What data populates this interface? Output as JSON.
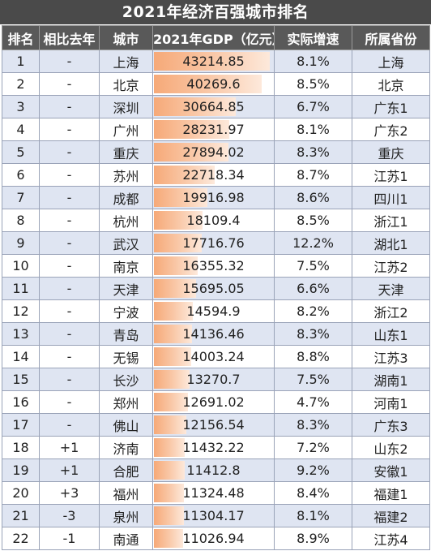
{
  "title": "2021年经济百强城市排名",
  "headers": [
    "排名",
    "相比去年",
    "城市",
    "2021年GDP（亿元）",
    "实际增速",
    "所属省份"
  ],
  "gdp_max": 43214.85,
  "colors": {
    "header_bg": "#595959",
    "title_bg": "#4a4a4a",
    "row_odd": "#dfe5f2",
    "growth_red": "#c0262f",
    "growth_green": "#2d9a4b",
    "bar": "#f6a978"
  },
  "rows": [
    {
      "rank": "1",
      "change": "-",
      "change_color": "dark",
      "city": "上海",
      "gdp": "43214.85",
      "growth": "8.1%",
      "growth_color": "dark",
      "province": "上海"
    },
    {
      "rank": "2",
      "change": "-",
      "change_color": "dark",
      "city": "北京",
      "gdp": "40269.6",
      "growth": "8.5%",
      "growth_color": "red",
      "province": "北京"
    },
    {
      "rank": "3",
      "change": "-",
      "change_color": "dark",
      "city": "深圳",
      "gdp": "30664.85",
      "growth": "6.7%",
      "growth_color": "green",
      "province": "广东1"
    },
    {
      "rank": "4",
      "change": "-",
      "change_color": "dark",
      "city": "广州",
      "gdp": "28231.97",
      "growth": "8.1%",
      "growth_color": "dark",
      "province": "广东2"
    },
    {
      "rank": "5",
      "change": "-",
      "change_color": "dark",
      "city": "重庆",
      "gdp": "27894.02",
      "growth": "8.3%",
      "growth_color": "red",
      "province": "重庆"
    },
    {
      "rank": "6",
      "change": "-",
      "change_color": "dark",
      "city": "苏州",
      "gdp": "22718.34",
      "growth": "8.7%",
      "growth_color": "red",
      "province": "江苏1"
    },
    {
      "rank": "7",
      "change": "-",
      "change_color": "dark",
      "city": "成都",
      "gdp": "19916.98",
      "growth": "8.6%",
      "growth_color": "red",
      "province": "四川1"
    },
    {
      "rank": "8",
      "change": "-",
      "change_color": "dark",
      "city": "杭州",
      "gdp": "18109.4",
      "growth": "8.5%",
      "growth_color": "red",
      "province": "浙江1"
    },
    {
      "rank": "9",
      "change": "-",
      "change_color": "dark",
      "city": "武汉",
      "gdp": "17716.76",
      "growth": "12.2%",
      "growth_color": "red",
      "province": "湖北1"
    },
    {
      "rank": "10",
      "change": "-",
      "change_color": "dark",
      "city": "南京",
      "gdp": "16355.32",
      "growth": "7.5%",
      "growth_color": "green",
      "province": "江苏2"
    },
    {
      "rank": "11",
      "change": "-",
      "change_color": "dark",
      "city": "天津",
      "gdp": "15695.05",
      "growth": "6.6%",
      "growth_color": "green",
      "province": "天津"
    },
    {
      "rank": "12",
      "change": "-",
      "change_color": "dark",
      "city": "宁波",
      "gdp": "14594.9",
      "growth": "8.2%",
      "growth_color": "red",
      "province": "浙江2"
    },
    {
      "rank": "13",
      "change": "-",
      "change_color": "dark",
      "city": "青岛",
      "gdp": "14136.46",
      "growth": "8.3%",
      "growth_color": "red",
      "province": "山东1"
    },
    {
      "rank": "14",
      "change": "-",
      "change_color": "dark",
      "city": "无锡",
      "gdp": "14003.24",
      "growth": "8.8%",
      "growth_color": "red",
      "province": "江苏3"
    },
    {
      "rank": "15",
      "change": "-",
      "change_color": "dark",
      "city": "长沙",
      "gdp": "13270.7",
      "growth": "7.5%",
      "growth_color": "green",
      "province": "湖南1"
    },
    {
      "rank": "16",
      "change": "-",
      "change_color": "dark",
      "city": "郑州",
      "gdp": "12691.02",
      "growth": "4.7%",
      "growth_color": "green",
      "province": "河南1"
    },
    {
      "rank": "17",
      "change": "-",
      "change_color": "dark",
      "city": "佛山",
      "gdp": "12156.54",
      "growth": "8.3%",
      "growth_color": "red",
      "province": "广东3"
    },
    {
      "rank": "18",
      "change": "+1",
      "change_color": "red",
      "city": "济南",
      "gdp": "11432.22",
      "growth": "7.2%",
      "growth_color": "green",
      "province": "山东2"
    },
    {
      "rank": "19",
      "change": "+1",
      "change_color": "red",
      "city": "合肥",
      "gdp": "11412.8",
      "growth": "9.2%",
      "growth_color": "red",
      "province": "安徽1"
    },
    {
      "rank": "20",
      "change": "+3",
      "change_color": "red",
      "city": "福州",
      "gdp": "11324.48",
      "growth": "8.4%",
      "growth_color": "red",
      "province": "福建1"
    },
    {
      "rank": "21",
      "change": "-3",
      "change_color": "green",
      "city": "泉州",
      "gdp": "11304.17",
      "growth": "8.1%",
      "growth_color": "dark",
      "province": "福建2"
    },
    {
      "rank": "22",
      "change": "-1",
      "change_color": "green",
      "city": "南通",
      "gdp": "11026.94",
      "growth": "8.9%",
      "growth_color": "red",
      "province": "江苏4"
    }
  ]
}
